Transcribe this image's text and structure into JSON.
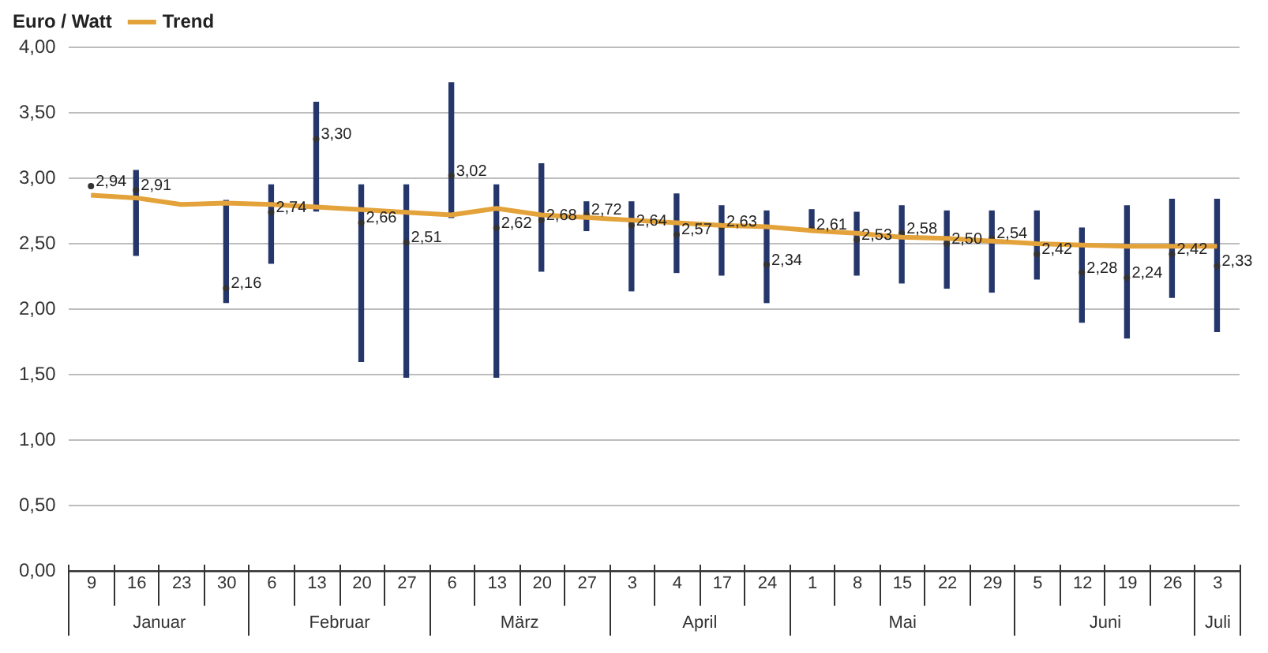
{
  "chart_data": {
    "type": "bar",
    "ylabel": "Euro / Watt",
    "legend": "top left",
    "grid": "y",
    "marker": "none",
    "categories": [
      "9",
      "16",
      "23",
      "30",
      "6",
      "13",
      "20",
      "27",
      "6",
      "13",
      "20",
      "27",
      "3",
      "4",
      "17",
      "24",
      "1",
      "8",
      "15",
      "22",
      "29",
      "5",
      "12",
      "19",
      "26",
      "3"
    ],
    "ylim": [
      0,
      4
    ],
    "yticks": [
      {
        "value": 0,
        "label": "0,00"
      },
      {
        "value": 0.5,
        "label": "0,50"
      },
      {
        "value": 1,
        "label": "1,00"
      },
      {
        "value": 1.5,
        "label": "1,50"
      },
      {
        "value": 2,
        "label": "2,00"
      },
      {
        "value": 2.5,
        "label": "2,50"
      },
      {
        "value": 3,
        "label": "3,00"
      },
      {
        "value": 3.5,
        "label": "3,50"
      },
      {
        "value": 4,
        "label": "4,00"
      }
    ],
    "series": [
      {
        "type": "bar",
        "color": "#25366b",
        "base": [
          null,
          2.41,
          null,
          2.05,
          2.35,
          2.75,
          1.6,
          1.48,
          2.7,
          1.48,
          2.29,
          2.6,
          2.14,
          2.28,
          2.26,
          2.05,
          2.6,
          2.26,
          2.2,
          2.16,
          2.13,
          2.23,
          1.9,
          1.78,
          2.09,
          1.83
        ],
        "values": [
          null,
          0.65,
          null,
          0.78,
          0.6,
          0.83,
          1.35,
          1.47,
          1.03,
          1.47,
          0.82,
          0.22,
          0.68,
          0.6,
          0.53,
          0.7,
          0.16,
          0.48,
          0.59,
          0.59,
          0.62,
          0.52,
          0.72,
          1.01,
          0.75,
          1.01
        ]
      },
      {
        "type": "scatter",
        "color": "#333333",
        "marker": "circle",
        "values": [
          2.94,
          2.91,
          null,
          2.16,
          2.74,
          3.3,
          2.66,
          2.51,
          3.02,
          2.62,
          2.68,
          2.72,
          2.64,
          2.57,
          2.63,
          2.34,
          2.61,
          2.53,
          2.58,
          2.5,
          2.54,
          2.42,
          2.28,
          2.24,
          2.42,
          2.33
        ],
        "value_labels": [
          "2,94",
          "2,91",
          null,
          "2,16",
          "2,74",
          "3,30",
          "2,66",
          "2,51",
          "3,02",
          "2,62",
          "2,68",
          "2,72",
          "2,64",
          "2,57",
          "2,63",
          "2,34",
          "2,61",
          "2,53",
          "2,58",
          "2,50",
          "2,54",
          "2,42",
          "2,28",
          "2,24",
          "2,42",
          "2,33"
        ]
      },
      {
        "type": "line",
        "name": "Trend",
        "color": "#e3a33a",
        "values": [
          2.87,
          2.85,
          2.8,
          2.81,
          2.8,
          2.78,
          2.76,
          2.74,
          2.72,
          2.77,
          2.72,
          2.7,
          2.68,
          2.66,
          2.64,
          2.63,
          2.6,
          2.58,
          2.55,
          2.54,
          2.52,
          2.5,
          2.49,
          2.48,
          2.48,
          2.48
        ]
      }
    ],
    "annotations": [
      "Januar",
      "Februar",
      "März",
      "April",
      "Mai",
      "Juni",
      "Juli"
    ]
  }
}
